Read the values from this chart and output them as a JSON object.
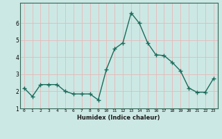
{
  "x": [
    0,
    1,
    2,
    3,
    4,
    5,
    6,
    7,
    8,
    9,
    10,
    11,
    12,
    13,
    14,
    15,
    16,
    17,
    18,
    19,
    20,
    21,
    22,
    23
  ],
  "y": [
    2.2,
    1.7,
    2.4,
    2.4,
    2.4,
    2.0,
    1.85,
    1.85,
    1.85,
    1.5,
    3.3,
    4.5,
    4.85,
    6.6,
    6.0,
    4.85,
    4.15,
    4.1,
    3.7,
    3.2,
    2.2,
    1.95,
    1.95,
    2.75
  ],
  "title": "",
  "xlabel": "Humidex (Indice chaleur)",
  "ylabel": "",
  "xlim": [
    -0.5,
    23.5
  ],
  "ylim": [
    1.0,
    7.2
  ],
  "yticks": [
    1,
    2,
    3,
    4,
    5,
    6
  ],
  "xticks": [
    0,
    1,
    2,
    3,
    4,
    5,
    6,
    7,
    8,
    9,
    10,
    11,
    12,
    13,
    14,
    15,
    16,
    17,
    18,
    19,
    20,
    21,
    22,
    23
  ],
  "line_color": "#1a6b5a",
  "marker": "+",
  "marker_size": 4,
  "bg_color": "#cce8e4",
  "grid_color": "#e8b8b8",
  "line_width": 1.0
}
